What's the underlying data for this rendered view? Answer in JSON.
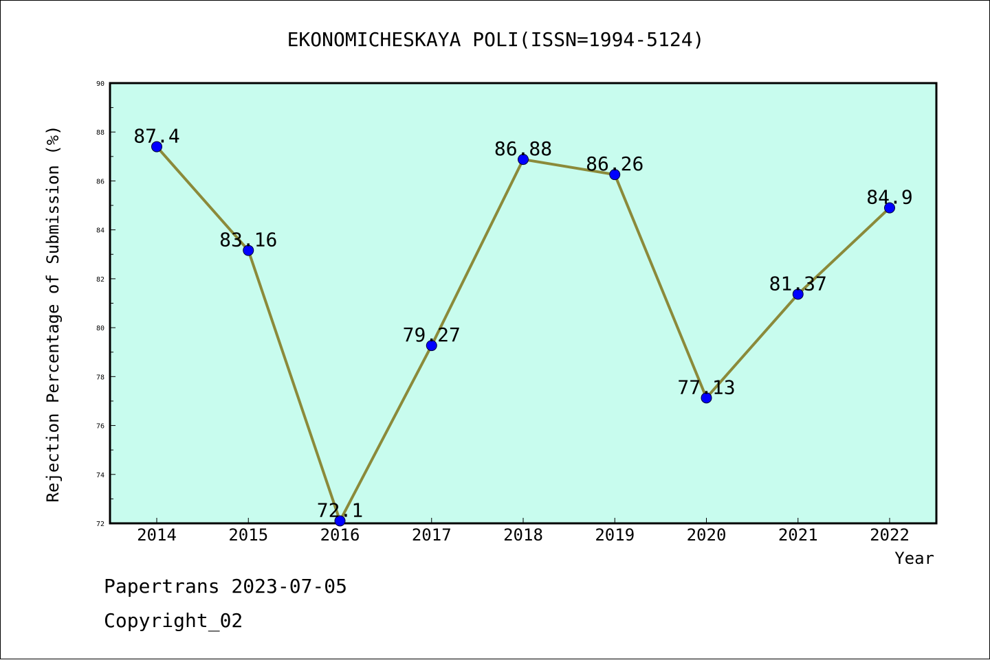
{
  "chart_data": {
    "type": "line",
    "title": "EKONOMICHESKAYA POLI(ISSN=1994-5124)",
    "xlabel": "Year",
    "ylabel": "Rejection Percentage of Submission (%)",
    "categories": [
      "2014",
      "2015",
      "2016",
      "2017",
      "2018",
      "2019",
      "2020",
      "2021",
      "2022"
    ],
    "values": [
      87.4,
      83.16,
      72.1,
      79.27,
      86.88,
      86.26,
      77.13,
      81.37,
      84.9
    ],
    "data_labels": [
      "87.4",
      "83.16",
      "72.1",
      "79.27",
      "86.88",
      "86.26",
      "77.13",
      "81.37",
      "84.9"
    ],
    "ylim": [
      72,
      90
    ],
    "yticks": [
      72,
      74,
      76,
      78,
      80,
      82,
      84,
      86,
      88,
      90
    ],
    "ytick_labels": [
      "72",
      "74",
      "76",
      "78",
      "80",
      "82",
      "84",
      "86",
      "88",
      "90"
    ],
    "grid": false,
    "legend": "none",
    "colors": {
      "plot_background": "#c8fcee",
      "line": "#8b8a3a",
      "marker": "#0000ff"
    }
  },
  "footer": {
    "line1": "Papertrans 2023-07-05",
    "line2": "Copyright_02"
  }
}
